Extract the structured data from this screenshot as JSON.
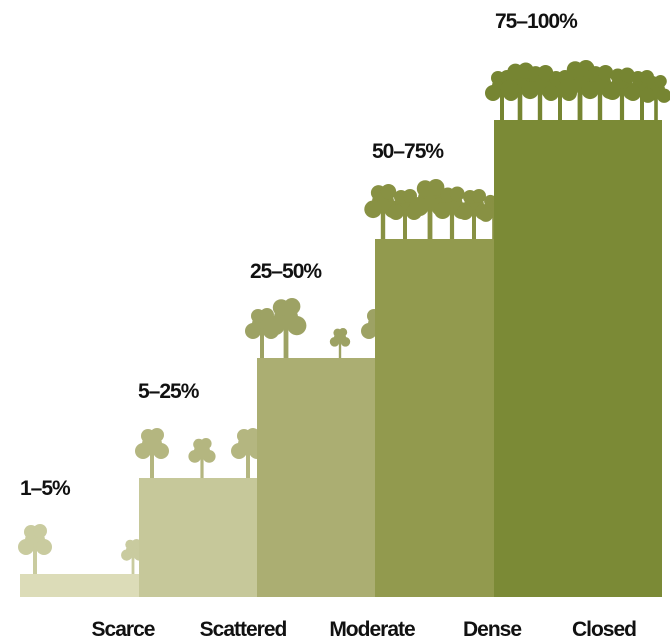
{
  "steps": [
    {
      "range": "1–5%",
      "label": "Scarce"
    },
    {
      "range": "5–25%",
      "label": "Scattered"
    },
    {
      "range": "25–50%",
      "label": "Moderate"
    },
    {
      "range": "50–75%",
      "label": "Dense"
    },
    {
      "range": "75–100%",
      "label": "Closed"
    }
  ]
}
